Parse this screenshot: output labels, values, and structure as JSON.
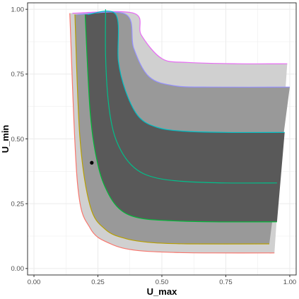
{
  "chart_data": {
    "type": "area",
    "xlabel": "U_max",
    "ylabel": "U_min",
    "xlim": [
      -0.025,
      1.025
    ],
    "ylim": [
      -0.025,
      1.025
    ],
    "x_ticks": [
      {
        "value": 0.0,
        "label": "0.00"
      },
      {
        "value": 0.25,
        "label": "0.25"
      },
      {
        "value": 0.5,
        "label": "0.50"
      },
      {
        "value": 0.75,
        "label": "0.75"
      },
      {
        "value": 1.0,
        "label": "1.00"
      }
    ],
    "y_ticks": [
      {
        "value": 0.0,
        "label": "0.00"
      },
      {
        "value": 0.25,
        "label": "0.25"
      },
      {
        "value": 0.5,
        "label": "0.50"
      },
      {
        "value": 0.75,
        "label": "0.75"
      },
      {
        "value": 1.0,
        "label": "1.00"
      }
    ],
    "grid": true,
    "theme": {
      "panel_background": "#ffffff",
      "panel_border": "#333333",
      "grid_color": "#ebebeb"
    },
    "bands": [
      {
        "fill": "#d0d0d0",
        "lower": [
          [
            0.14,
            0.985
          ],
          [
            0.17,
            0.33
          ],
          [
            0.22,
            0.155
          ],
          [
            0.3,
            0.095
          ],
          [
            0.4,
            0.07
          ],
          [
            0.55,
            0.062
          ],
          [
            0.7,
            0.06
          ],
          [
            0.94,
            0.06
          ]
        ],
        "upper": [
          [
            0.15,
            0.985
          ],
          [
            0.39,
            0.985
          ],
          [
            0.42,
            0.9
          ],
          [
            0.5,
            0.81
          ],
          [
            0.6,
            0.795
          ],
          [
            0.8,
            0.79
          ],
          [
            0.99,
            0.79
          ]
        ],
        "lower_color": "#F8766D",
        "upper_color": "#E76BF3"
      },
      {
        "fill": "#999999",
        "lower": [
          [
            0.16,
            0.98
          ],
          [
            0.18,
            0.5
          ],
          [
            0.22,
            0.24
          ],
          [
            0.28,
            0.15
          ],
          [
            0.36,
            0.115
          ],
          [
            0.46,
            0.1
          ],
          [
            0.6,
            0.095
          ],
          [
            0.92,
            0.095
          ]
        ],
        "upper": [
          [
            0.17,
            0.98
          ],
          [
            0.36,
            0.98
          ],
          [
            0.39,
            0.85
          ],
          [
            0.45,
            0.74
          ],
          [
            0.55,
            0.705
          ],
          [
            0.7,
            0.7
          ],
          [
            1.0,
            0.7
          ]
        ],
        "lower_color": "#B79F00",
        "upper_color": "#9590FF"
      },
      {
        "fill": "#595959",
        "lower": [
          [
            0.2,
            0.98
          ],
          [
            0.22,
            0.6
          ],
          [
            0.25,
            0.4
          ],
          [
            0.29,
            0.29
          ],
          [
            0.34,
            0.225
          ],
          [
            0.41,
            0.195
          ],
          [
            0.52,
            0.185
          ],
          [
            0.7,
            0.18
          ],
          [
            0.95,
            0.18
          ]
        ],
        "upper": [
          [
            0.21,
            0.98
          ],
          [
            0.32,
            0.98
          ],
          [
            0.33,
            0.8
          ],
          [
            0.36,
            0.68
          ],
          [
            0.41,
            0.585
          ],
          [
            0.48,
            0.545
          ],
          [
            0.58,
            0.53
          ],
          [
            0.75,
            0.525
          ],
          [
            0.98,
            0.525
          ]
        ],
        "lower_color": "#00BA38",
        "upper_color": "#00BFC4"
      }
    ],
    "center_line": {
      "color": "#00C08B",
      "points": [
        [
          0.28,
          1.0
        ],
        [
          0.28,
          0.82
        ],
        [
          0.29,
          0.65
        ],
        [
          0.31,
          0.53
        ],
        [
          0.34,
          0.455
        ],
        [
          0.38,
          0.4
        ],
        [
          0.43,
          0.365
        ],
        [
          0.5,
          0.345
        ],
        [
          0.6,
          0.335
        ],
        [
          0.75,
          0.33
        ],
        [
          0.95,
          0.33
        ]
      ]
    },
    "points": [
      {
        "x": 0.226,
        "y": 0.408,
        "color": "#000000"
      }
    ]
  }
}
